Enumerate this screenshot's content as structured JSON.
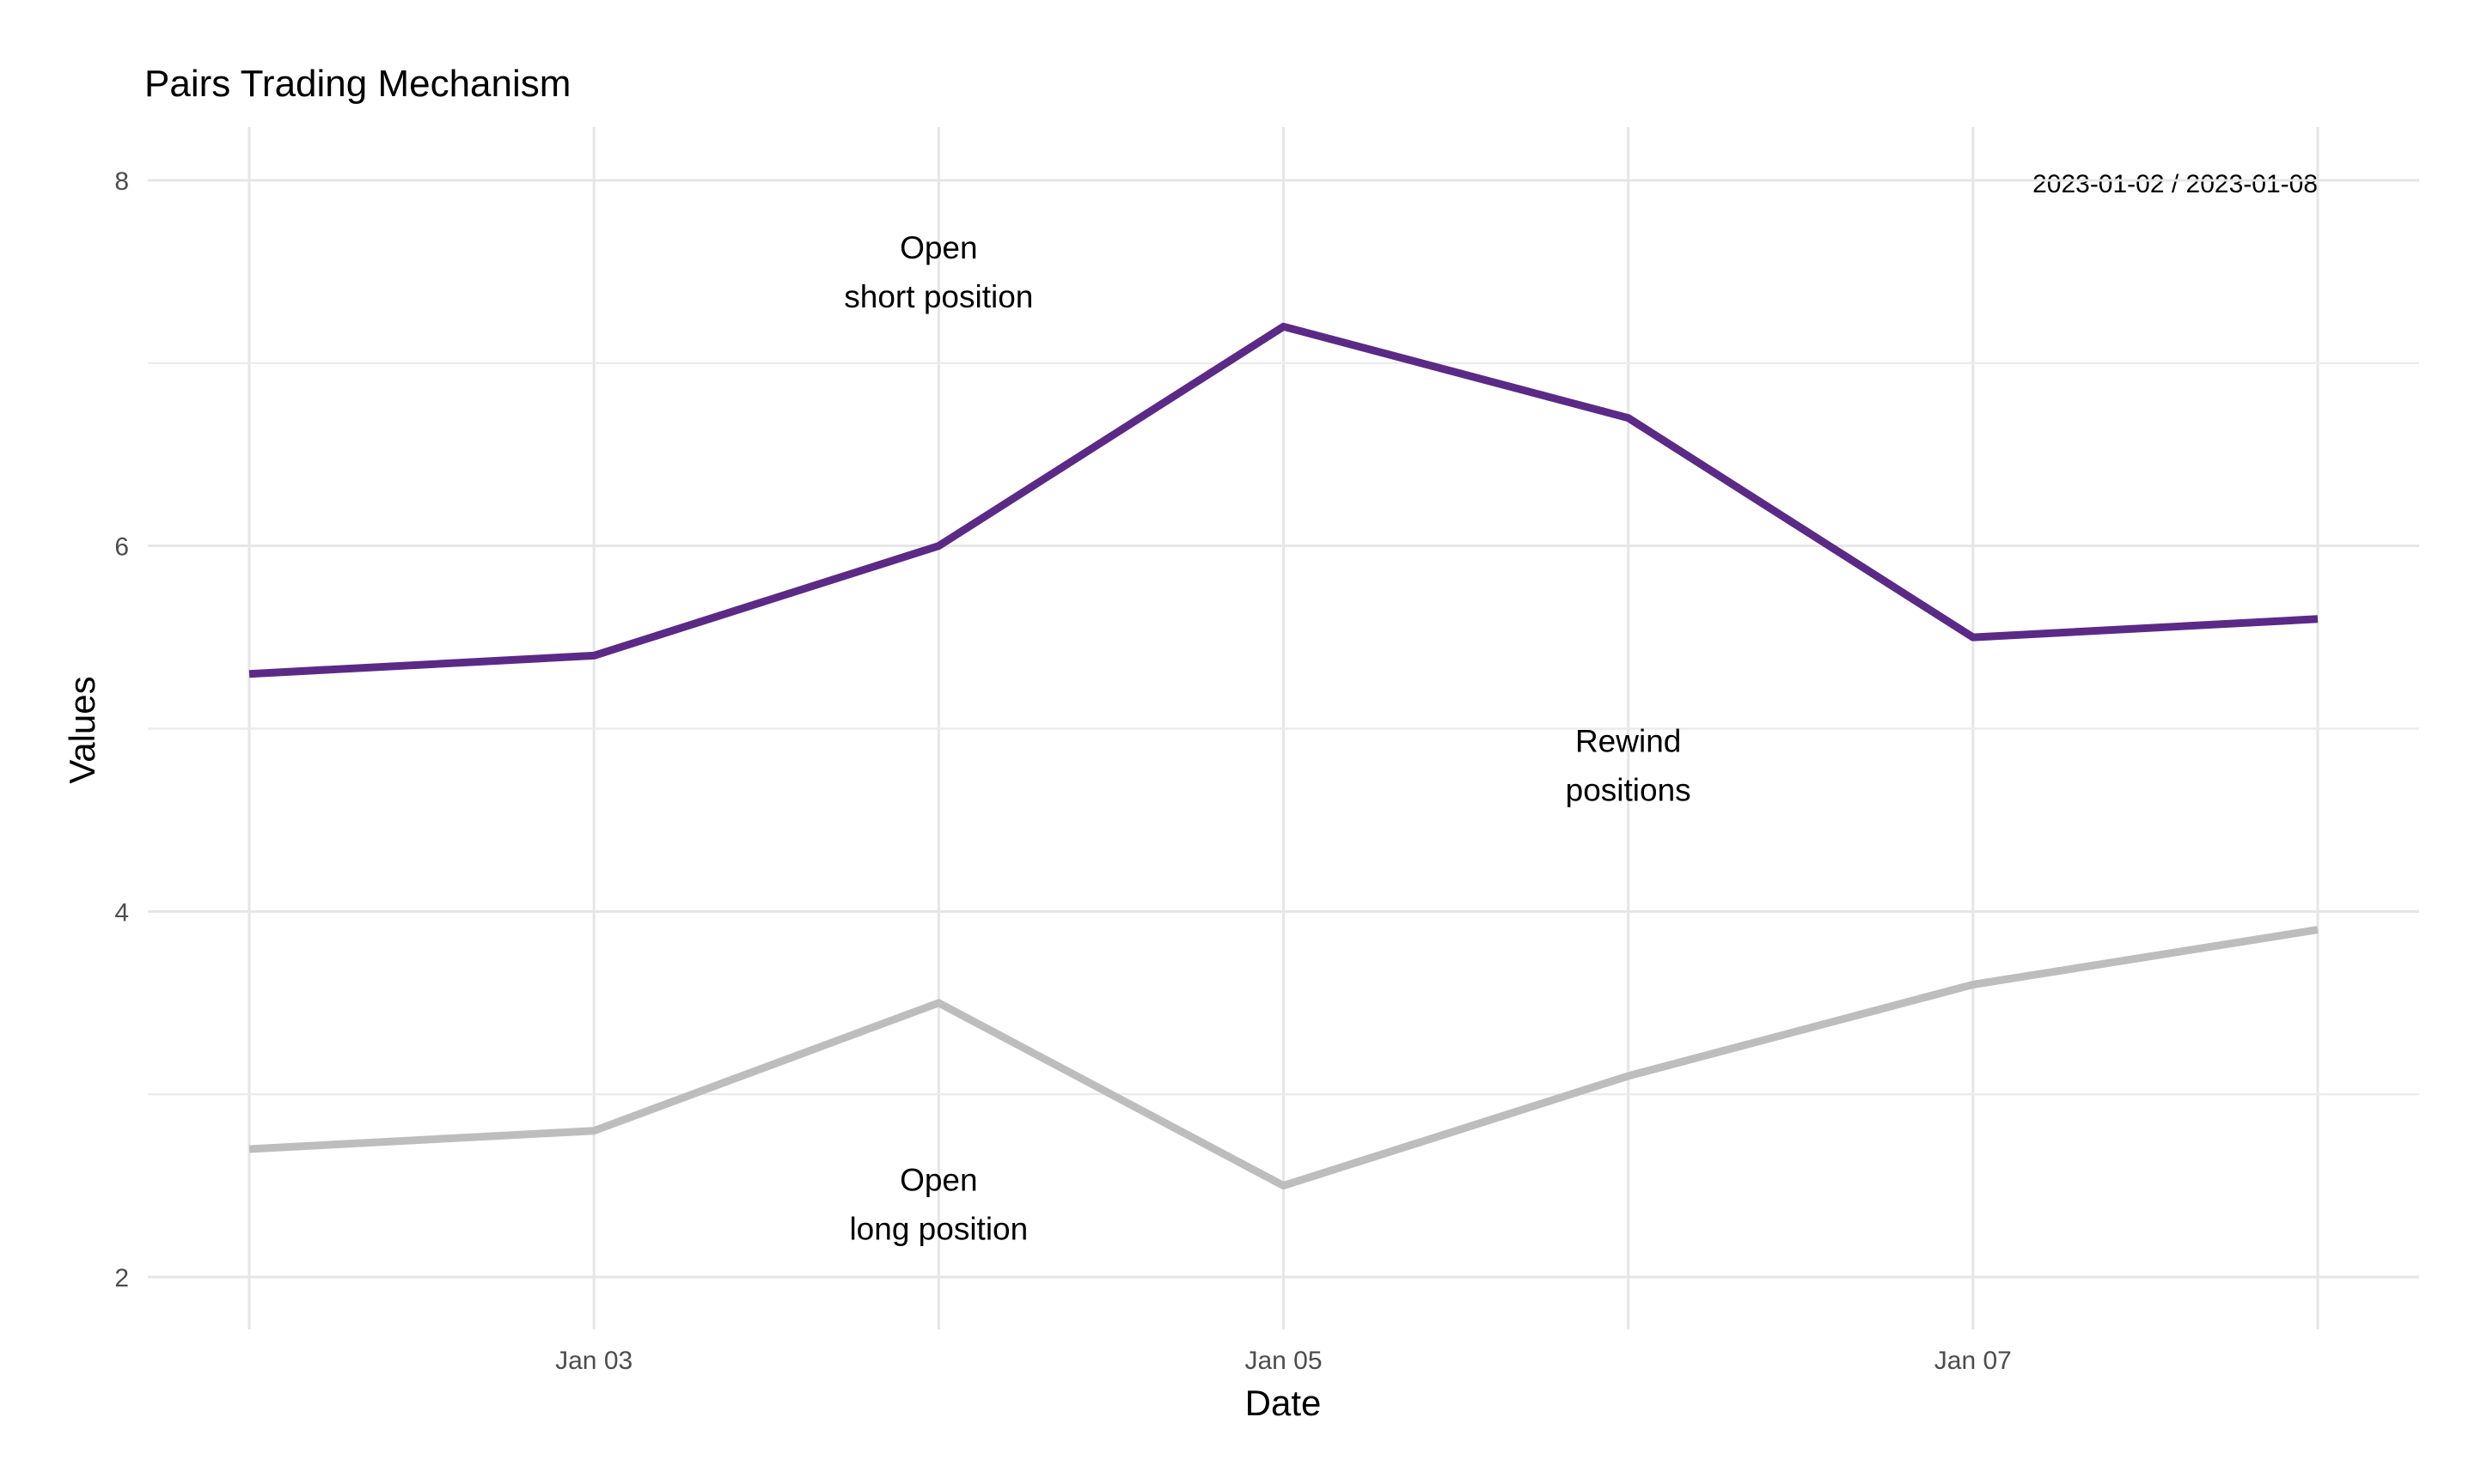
{
  "chart_data": {
    "type": "line",
    "title": "Pairs Trading Mechanism",
    "xlabel": "Date",
    "ylabel": "Values",
    "x": [
      "2023-01-02",
      "2023-01-03",
      "2023-01-04",
      "2023-01-05",
      "2023-01-06",
      "2023-01-07",
      "2023-01-08"
    ],
    "x_ticks": [
      {
        "date": "2023-01-03",
        "label": "Jan 03"
      },
      {
        "date": "2023-01-05",
        "label": "Jan 05"
      },
      {
        "date": "2023-01-07",
        "label": "Jan 07"
      }
    ],
    "y_ticks": [
      2,
      4,
      6,
      8
    ],
    "ylim": [
      1.8,
      8.3
    ],
    "grid": true,
    "range_label": "2023-01-02 / 2023-01-08",
    "series": [
      {
        "color": "#5b2a86",
        "values": [
          5.3,
          5.4,
          6.0,
          7.2,
          6.7,
          5.5,
          5.6
        ]
      },
      {
        "color": "#bdbdbd",
        "values": [
          2.7,
          2.8,
          3.5,
          2.5,
          3.1,
          3.6,
          3.9
        ]
      }
    ],
    "annotations": [
      {
        "x": "2023-01-04",
        "y": 7.5,
        "lines": [
          "Open",
          "short position"
        ]
      },
      {
        "x": "2023-01-06",
        "y": 4.8,
        "lines": [
          "Rewind",
          "positions"
        ]
      },
      {
        "x": "2023-01-04",
        "y": 2.4,
        "lines": [
          "Open",
          "long position"
        ]
      }
    ]
  }
}
